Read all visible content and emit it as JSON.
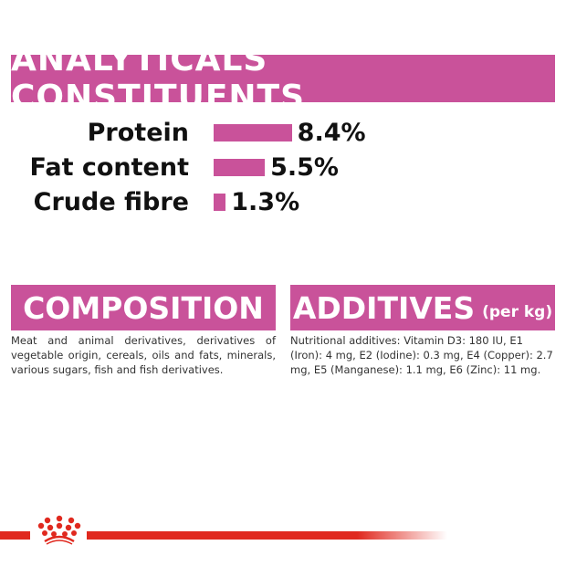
{
  "analytical": {
    "title": "ANALYTICALS CONSTITUENTS",
    "items": [
      {
        "label": "Protein",
        "value": "8.4%",
        "percent": 8.4
      },
      {
        "label": "Fat content",
        "value": "5.5%",
        "percent": 5.5
      },
      {
        "label": "Crude fibre",
        "value": "1.3%",
        "percent": 1.3
      }
    ]
  },
  "composition": {
    "title": "COMPOSITION",
    "text": "Meat and animal derivatives, derivatives of vegetable origin, cereals, oils and fats, minerals, various sugars, fish and fish derivatives."
  },
  "additives": {
    "title": "ADDITIVES",
    "unit": "(per kg)",
    "text": "Nutritional additives: Vitamin D3: 180 IU, E1 (Iron): 4 mg, E2 (Iodine): 0.3 mg, E4 (Copper): 2.7 mg, E5 (Manganese): 1.1 mg, E6 (Zinc): 11 mg."
  },
  "colors": {
    "accent": "#c9529a",
    "brand_red": "#e0291f"
  },
  "footer": {
    "logo": "royal-canin-crown-logo"
  }
}
